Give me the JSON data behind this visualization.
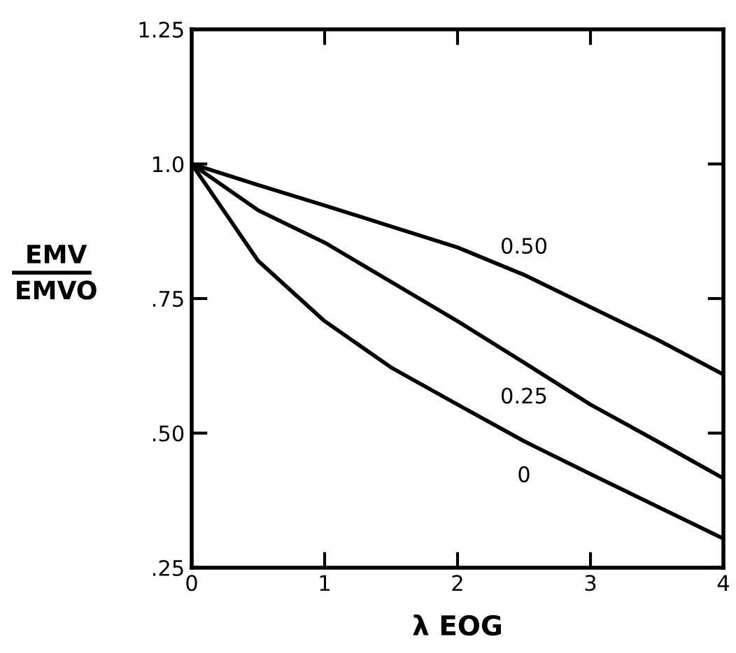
{
  "chart_data": {
    "type": "line",
    "xlabel": "λ EOG",
    "ylabel": "EMV\nEMVO",
    "x": [
      0,
      0.5,
      1,
      1.5,
      2,
      2.5,
      3,
      3.5,
      4
    ],
    "series": [
      {
        "name": "0.50",
        "color": "#000000",
        "values": [
          1.0,
          0.961,
          0.923,
          0.884,
          0.845,
          0.794,
          0.734,
          0.674,
          0.609
        ]
      },
      {
        "name": "0.25",
        "color": "#000000",
        "values": [
          1.0,
          0.914,
          0.854,
          0.781,
          0.708,
          0.631,
          0.553,
          0.485,
          0.416
        ]
      },
      {
        "name": "0",
        "color": "#000000",
        "values": [
          1.0,
          0.82,
          0.708,
          0.622,
          0.553,
          0.485,
          0.424,
          0.364,
          0.304
        ]
      }
    ],
    "xlim": [
      0,
      4
    ],
    "ylim": [
      0.25,
      1.25
    ],
    "xticks": [
      0,
      1,
      2,
      3,
      4
    ],
    "yticks": [
      {
        "value": 0.25,
        "label": ".25"
      },
      {
        "value": 0.5,
        "label": ".50"
      },
      {
        "value": 0.75,
        "label": ".75"
      },
      {
        "value": 1.0,
        "label": "1.0"
      },
      {
        "value": 1.25,
        "label": "1.25"
      }
    ],
    "grid": false,
    "legend": false,
    "marker": "none",
    "line_style": "solid"
  }
}
